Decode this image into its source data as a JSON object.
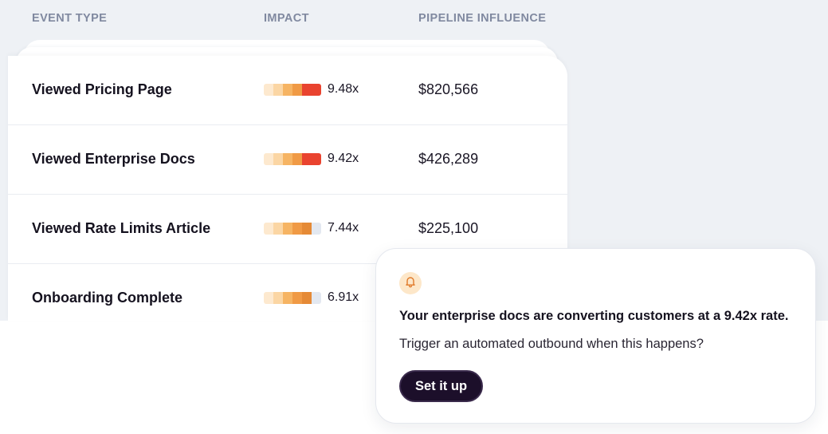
{
  "table": {
    "headers": {
      "event_type": "EVENT TYPE",
      "impact": "IMPACT",
      "pipeline_influence": "PIPELINE INFLUENCE"
    },
    "rows": [
      {
        "event": "Viewed Pricing Page",
        "impact": "9.48x",
        "pipeline": "$820,566",
        "impact_bar": [
          "#fde9cf",
          "#fbd6a4",
          "#f6b463",
          "#f09a45",
          "#e9432f",
          "#e9432f"
        ]
      },
      {
        "event": "Viewed Enterprise Docs",
        "impact": "9.42x",
        "pipeline": "$426,289",
        "impact_bar": [
          "#fde9cf",
          "#fbd6a4",
          "#f6b463",
          "#f09a45",
          "#e9432f",
          "#e9432f"
        ]
      },
      {
        "event": "Viewed Rate Limits Article",
        "impact": "7.44x",
        "pipeline": "$225,100",
        "impact_bar": [
          "#fde9cf",
          "#fbd6a4",
          "#f6b463",
          "#f09a45",
          "#e58a36",
          "#e3e8f0"
        ]
      },
      {
        "event": "Onboarding Complete",
        "impact": "6.91x",
        "pipeline": "",
        "impact_bar": [
          "#fde9cf",
          "#fbd6a4",
          "#f6b463",
          "#f09a45",
          "#e58a36",
          "#e3e8f0"
        ]
      }
    ]
  },
  "notification": {
    "icon": "bell-icon",
    "title": "Your enterprise docs are converting customers at a 9.42x rate.",
    "body": "Trigger an automated outbound when this happens?",
    "cta_label": "Set it up"
  },
  "colors": {
    "page_background": "#eef1f5",
    "header_text": "#8089a0",
    "cta_background": "#1c0f2a",
    "bell_badge": "#fde7c9",
    "bell_stroke": "#e07a2a"
  }
}
